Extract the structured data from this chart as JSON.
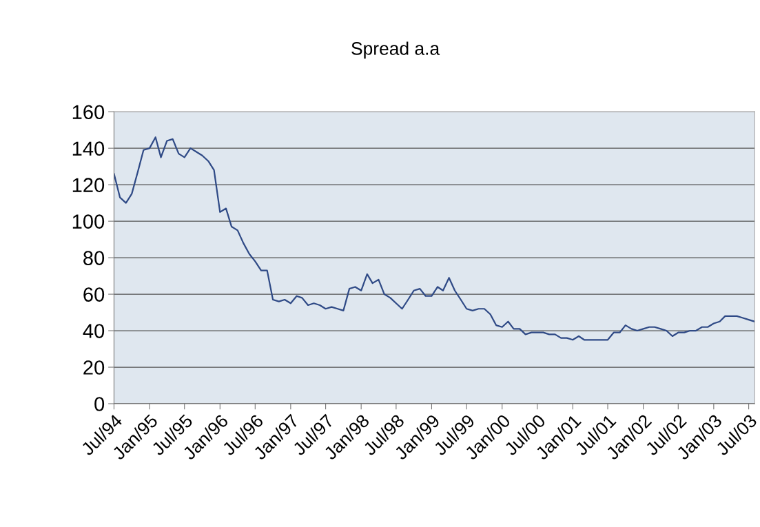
{
  "chart_data": {
    "type": "line",
    "title": "Spread a.a",
    "x": [
      "1994-07",
      "1994-08",
      "1994-09",
      "1994-10",
      "1994-11",
      "1994-12",
      "1995-01",
      "1995-02",
      "1995-03",
      "1995-04",
      "1995-05",
      "1995-06",
      "1995-07",
      "1995-08",
      "1995-09",
      "1995-10",
      "1995-11",
      "1995-12",
      "1996-01",
      "1996-02",
      "1996-03",
      "1996-04",
      "1996-05",
      "1996-06",
      "1996-07",
      "1996-08",
      "1996-09",
      "1996-10",
      "1996-11",
      "1996-12",
      "1997-01",
      "1997-02",
      "1997-03",
      "1997-04",
      "1997-05",
      "1997-06",
      "1997-07",
      "1997-08",
      "1997-09",
      "1997-10",
      "1997-11",
      "1997-12",
      "1998-01",
      "1998-02",
      "1998-03",
      "1998-04",
      "1998-05",
      "1998-06",
      "1998-07",
      "1998-08",
      "1998-09",
      "1998-10",
      "1998-11",
      "1998-12",
      "1999-01",
      "1999-02",
      "1999-03",
      "1999-04",
      "1999-05",
      "1999-06",
      "1999-07",
      "1999-08",
      "1999-09",
      "1999-10",
      "1999-11",
      "1999-12",
      "2000-01",
      "2000-02",
      "2000-03",
      "2000-04",
      "2000-05",
      "2000-06",
      "2000-07",
      "2000-08",
      "2000-09",
      "2000-10",
      "2000-11",
      "2000-12",
      "2001-01",
      "2001-02",
      "2001-03",
      "2001-04",
      "2001-05",
      "2001-06",
      "2001-07",
      "2001-08",
      "2001-09",
      "2001-10",
      "2001-11",
      "2001-12",
      "2002-01",
      "2002-02",
      "2002-03",
      "2002-04",
      "2002-05",
      "2002-06",
      "2002-07",
      "2002-08",
      "2002-09",
      "2002-10",
      "2002-11",
      "2002-12",
      "2003-01",
      "2003-02",
      "2003-03",
      "2003-04",
      "2003-05",
      "2003-06",
      "2003-07",
      "2003-08"
    ],
    "series": [
      {
        "color": "#2f4a86",
        "values": [
          126,
          113,
          110,
          115,
          127,
          139,
          140,
          146,
          135,
          144,
          145,
          137,
          135,
          140,
          138,
          136,
          133,
          128,
          105,
          107,
          97,
          95,
          88,
          82,
          78,
          73,
          73,
          57,
          56,
          57,
          55,
          59,
          58,
          54,
          55,
          54,
          52,
          53,
          52,
          51,
          63,
          64,
          62,
          71,
          66,
          68,
          60,
          58,
          55,
          52,
          57,
          62,
          63,
          59,
          59,
          64,
          62,
          69,
          62,
          57,
          52,
          51,
          52,
          52,
          49,
          43,
          42,
          45,
          41,
          41,
          38,
          39,
          39,
          39,
          38,
          38,
          36,
          36,
          35,
          37,
          35,
          35,
          35,
          35,
          35,
          39,
          39,
          43,
          41,
          40,
          41,
          42,
          42,
          41,
          40,
          37,
          39,
          39,
          40,
          40,
          42,
          42,
          44,
          45,
          48,
          48,
          48,
          47,
          46,
          45
        ]
      }
    ],
    "xlim": [
      "1994-07",
      "2003-08"
    ],
    "xticks": [
      {
        "value": "1994-07",
        "label": "Jul/94"
      },
      {
        "value": "1995-01",
        "label": "Jan/95"
      },
      {
        "value": "1995-07",
        "label": "Jul/95"
      },
      {
        "value": "1996-01",
        "label": "Jan/96"
      },
      {
        "value": "1996-07",
        "label": "Jul/96"
      },
      {
        "value": "1997-01",
        "label": "Jan/97"
      },
      {
        "value": "1997-07",
        "label": "Jul/97"
      },
      {
        "value": "1998-01",
        "label": "Jan/98"
      },
      {
        "value": "1998-07",
        "label": "Jul/98"
      },
      {
        "value": "1999-01",
        "label": "Jan/99"
      },
      {
        "value": "1999-07",
        "label": "Jul/99"
      },
      {
        "value": "2000-01",
        "label": "Jan/00"
      },
      {
        "value": "2000-07",
        "label": "Jul/00"
      },
      {
        "value": "2001-01",
        "label": "Jan/01"
      },
      {
        "value": "2001-07",
        "label": "Jul/01"
      },
      {
        "value": "2002-01",
        "label": "Jan/02"
      },
      {
        "value": "2002-07",
        "label": "Jul/02"
      },
      {
        "value": "2003-01",
        "label": "Jan/03"
      },
      {
        "value": "2003-07",
        "label": "Jul/03"
      }
    ],
    "ylim": [
      0,
      160
    ],
    "yticks": [
      0,
      20,
      40,
      60,
      80,
      100,
      120,
      140,
      160
    ],
    "grid": "y",
    "marker": "none",
    "line_style": "solid"
  }
}
